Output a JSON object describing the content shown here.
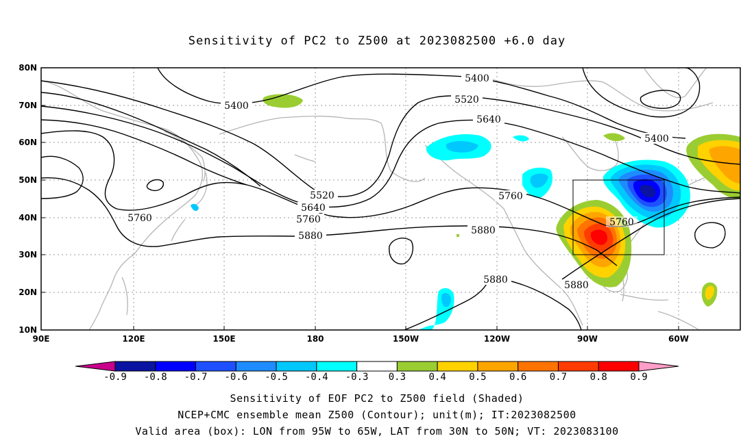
{
  "title": "Sensitivity of PC2 to Z500 at 2023082500 +6.0 day",
  "lat_labels": [
    "80N",
    "70N",
    "60N",
    "50N",
    "40N",
    "30N",
    "20N",
    "10N"
  ],
  "lon_labels": [
    "90E",
    "120E",
    "150E",
    "180",
    "150W",
    "120W",
    "90W",
    "60W"
  ],
  "colorbar": {
    "ticks": [
      "-0.9",
      "-0.8",
      "-0.7",
      "-0.6",
      "-0.5",
      "-0.4",
      "-0.3",
      "0.3",
      "0.4",
      "0.5",
      "0.6",
      "0.7",
      "0.8",
      "0.9"
    ],
    "colors": [
      "#0a14a0",
      "#0000ff",
      "#1e50ff",
      "#1e8cff",
      "#00c8ff",
      "#00ffff",
      "#ffffff",
      "#9acd32",
      "#ffd200",
      "#ffa500",
      "#ff7300",
      "#ff3c00",
      "#ff0000"
    ],
    "low_arrow_color": "#c8008c",
    "high_arrow_color": "#ff9ec8"
  },
  "contour_labels": [
    {
      "text": "5400"
    },
    {
      "text": "5400"
    },
    {
      "text": "5520"
    },
    {
      "text": "5640"
    },
    {
      "text": "5400"
    },
    {
      "text": "5760"
    },
    {
      "text": "5520"
    },
    {
      "text": "5640"
    },
    {
      "text": "5760"
    },
    {
      "text": "5880"
    },
    {
      "text": "5880"
    },
    {
      "text": "5760"
    },
    {
      "text": "5760"
    },
    {
      "text": "5880"
    },
    {
      "text": "5880"
    }
  ],
  "valid_box": {
    "lon_from": "95W",
    "lon_to": "65W",
    "lat_from": "30N",
    "lat_to": "50N"
  },
  "captions": {
    "line1": "Sensitivity of EOF PC2 to Z500 field (Shaded)",
    "line2": "NCEP+CMC ensemble mean Z500 (Contour); unit(m); IT:2023082500",
    "line3": "Valid area (box): LON from 95W to 65W, LAT from 30N to 50N; VT: 2023083100"
  }
}
